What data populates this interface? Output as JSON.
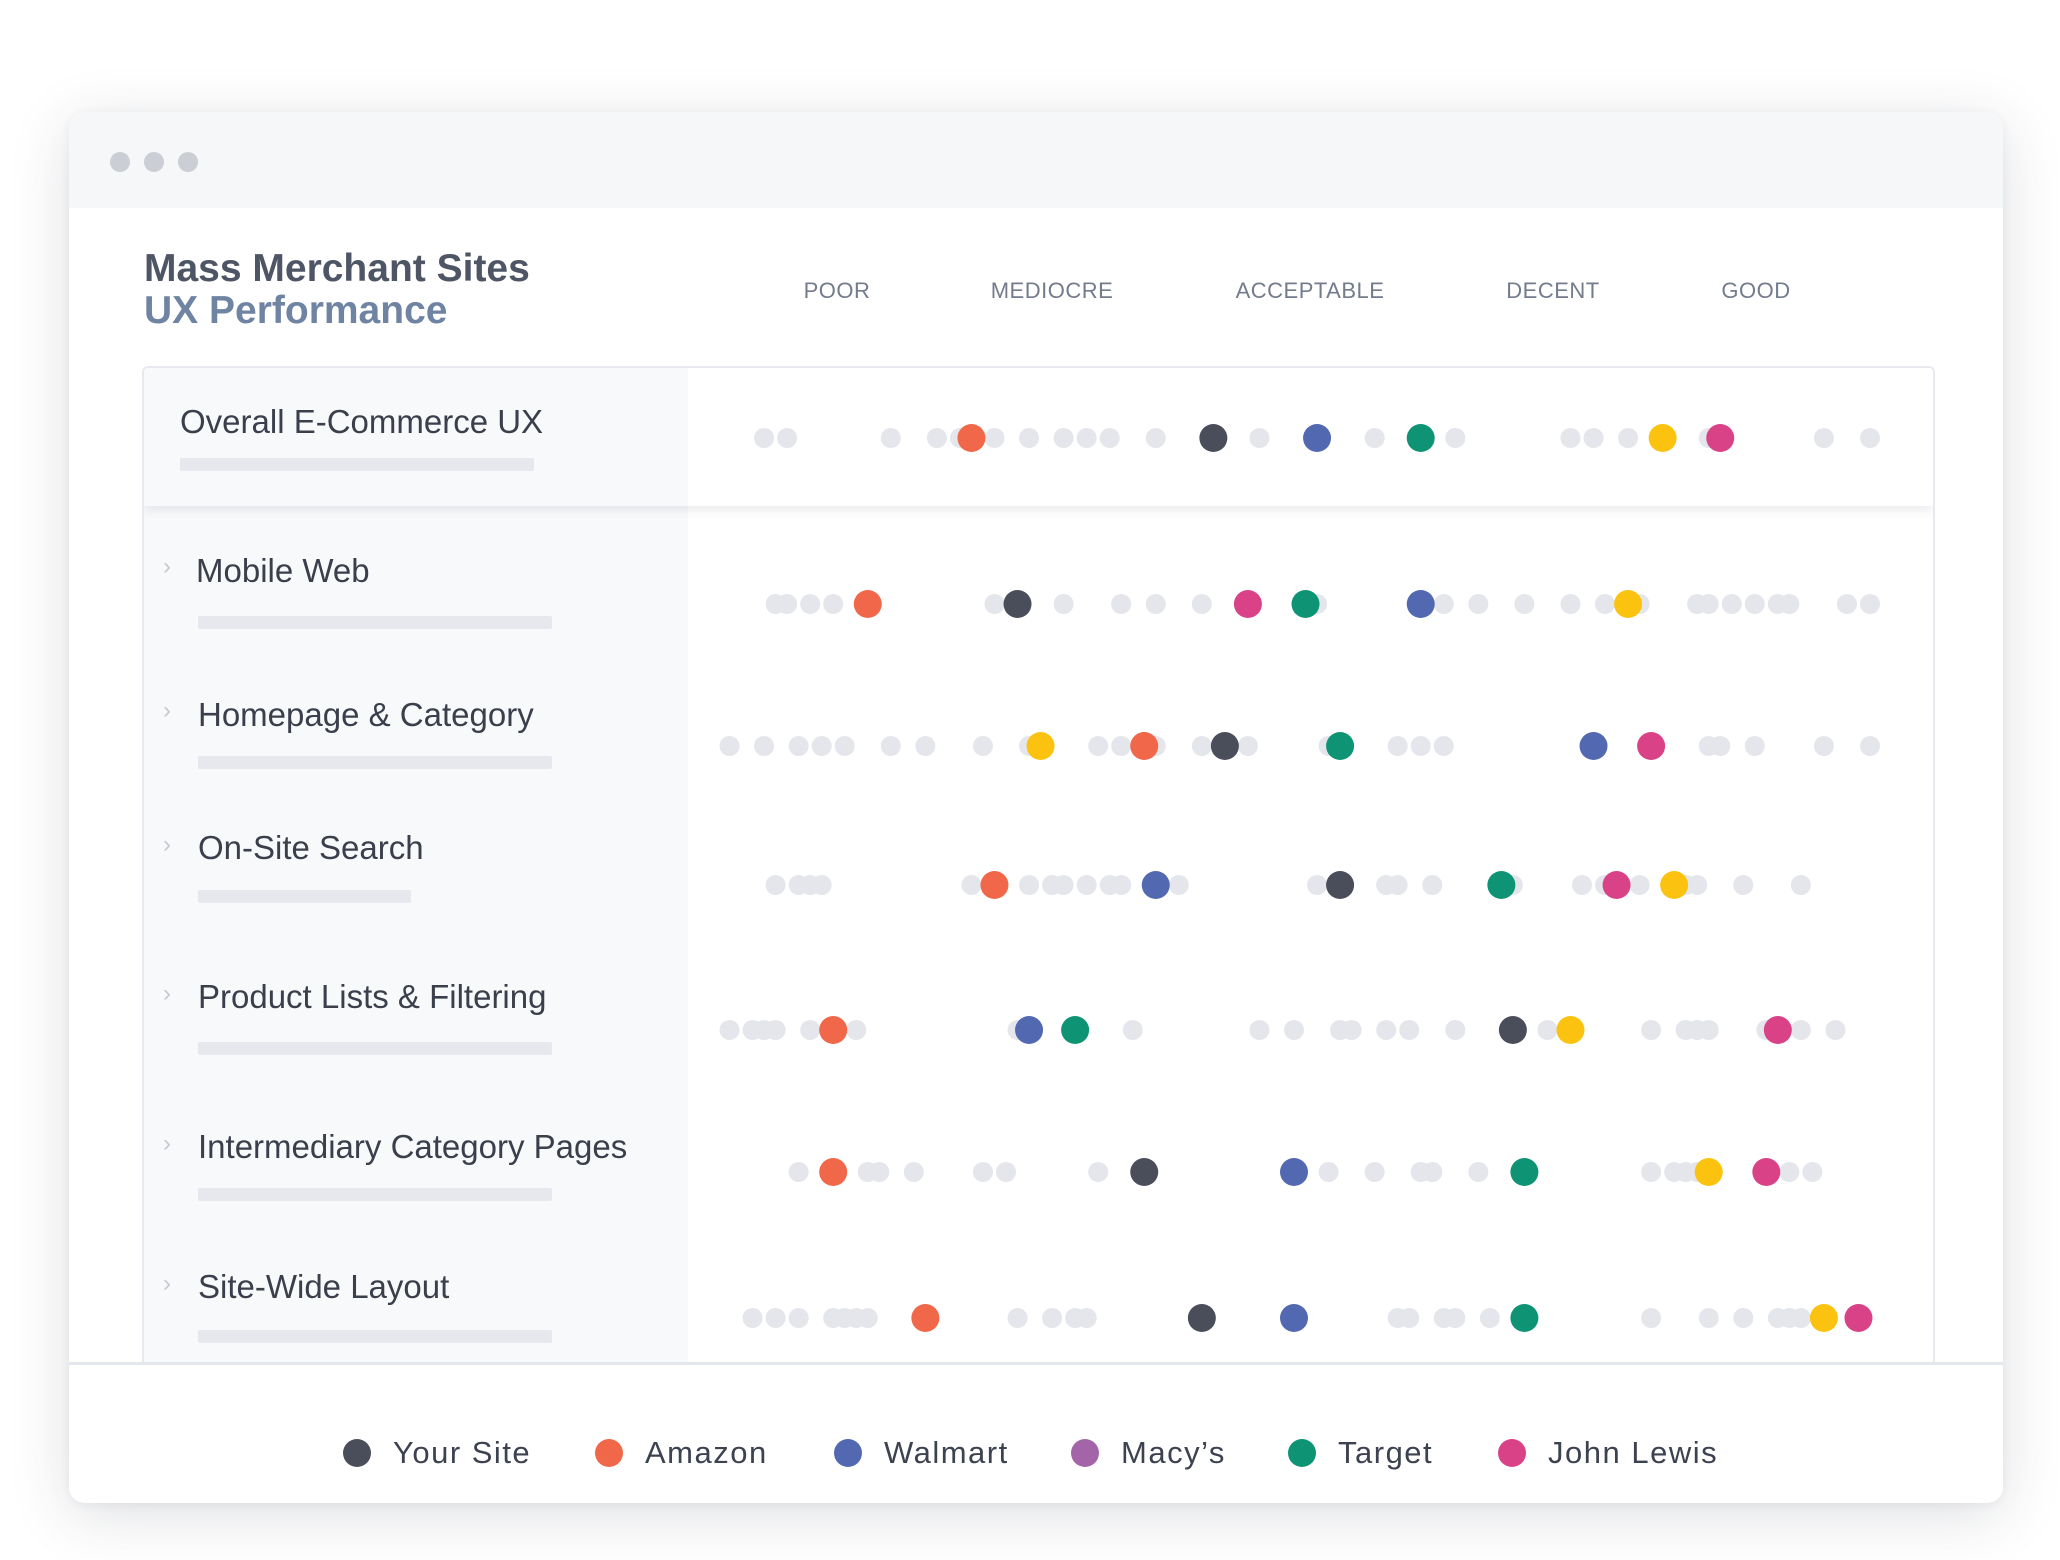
{
  "chart_data": {
    "type": "scatter",
    "title": "Mass Merchant Sites",
    "subtitle": "UX Performance",
    "scale_categories": [
      "POOR",
      "MEDIOCRE",
      "ACCEPTABLE",
      "DECENT",
      "GOOD"
    ],
    "rows": [
      {
        "label": "Overall E-Commerce UX",
        "values": {
          "Your Site": 0.43,
          "Amazon": 0.22,
          "Walmart": 0.52,
          "Target": 0.61,
          "John Lewis": 0.87,
          "Yellow": 0.82
        }
      },
      {
        "label": "Mobile Web",
        "values": {
          "Your Site": 0.26,
          "Amazon": 0.13,
          "Walmart": 0.61,
          "Target": 0.51,
          "John Lewis": 0.46,
          "Yellow": 0.79
        }
      },
      {
        "label": "Homepage & Category",
        "values": {
          "Your Site": 0.44,
          "Amazon": 0.37,
          "Walmart": 0.76,
          "Target": 0.54,
          "John Lewis": 0.81,
          "Yellow": 0.28
        }
      },
      {
        "label": "On-Site Search",
        "values": {
          "Your Site": 0.54,
          "Amazon": 0.24,
          "Walmart": 0.38,
          "Target": 0.68,
          "John Lewis": 0.78,
          "Yellow": 0.83
        }
      },
      {
        "label": "Product Lists & Filtering",
        "values": {
          "Your Site": 0.69,
          "Amazon": 0.1,
          "Walmart": 0.27,
          "Target": 0.31,
          "John Lewis": 0.92,
          "Yellow": 0.74
        }
      },
      {
        "label": "Intermediary Category Pages",
        "values": {
          "Your Site": 0.37,
          "Amazon": 0.1,
          "Walmart": 0.5,
          "Target": 0.7,
          "John Lewis": 0.91,
          "Yellow": 0.86
        }
      },
      {
        "label": "Site-Wide Layout",
        "values": {
          "Your Site": 0.42,
          "Amazon": 0.18,
          "Walmart": 0.5,
          "Target": 0.7,
          "John Lewis": 0.99,
          "Yellow": 0.96
        }
      }
    ],
    "background_points": [
      [
        0.04,
        0.06,
        0.15,
        0.19,
        0.21,
        0.24,
        0.27,
        0.3,
        0.32,
        0.34,
        0.38,
        0.47,
        0.57,
        0.64,
        0.74,
        0.76,
        0.79,
        0.86,
        0.96,
        1.0
      ],
      [
        0.05,
        0.06,
        0.08,
        0.1,
        0.24,
        0.3,
        0.35,
        0.38,
        0.42,
        0.52,
        0.63,
        0.66,
        0.7,
        0.74,
        0.77,
        0.8,
        0.85,
        0.86,
        0.88,
        0.9,
        0.92,
        0.93,
        0.98,
        1.0
      ],
      [
        0.01,
        0.04,
        0.07,
        0.09,
        0.11,
        0.15,
        0.18,
        0.23,
        0.27,
        0.33,
        0.35,
        0.37,
        0.38,
        0.42,
        0.46,
        0.53,
        0.59,
        0.61,
        0.63,
        0.86,
        0.87,
        0.9,
        0.96,
        1.0
      ],
      [
        0.05,
        0.07,
        0.08,
        0.09,
        0.22,
        0.27,
        0.29,
        0.3,
        0.32,
        0.34,
        0.35,
        0.4,
        0.52,
        0.58,
        0.59,
        0.62,
        0.69,
        0.75,
        0.77,
        0.8,
        0.84,
        0.85,
        0.89,
        0.94
      ],
      [
        0.01,
        0.03,
        0.04,
        0.05,
        0.08,
        0.12,
        0.26,
        0.36,
        0.47,
        0.5,
        0.54,
        0.55,
        0.58,
        0.6,
        0.64,
        0.72,
        0.81,
        0.84,
        0.85,
        0.86,
        0.91,
        0.94,
        0.97
      ],
      [
        0.07,
        0.13,
        0.14,
        0.17,
        0.23,
        0.25,
        0.33,
        0.53,
        0.57,
        0.61,
        0.62,
        0.66,
        0.81,
        0.83,
        0.84,
        0.85,
        0.93,
        0.95
      ],
      [
        0.03,
        0.05,
        0.07,
        0.1,
        0.11,
        0.12,
        0.13,
        0.26,
        0.29,
        0.31,
        0.32,
        0.59,
        0.6,
        0.63,
        0.64,
        0.67,
        0.81,
        0.86,
        0.89,
        0.92,
        0.93,
        0.94
      ]
    ],
    "series": [
      {
        "name": "Your Site",
        "color": "#4a4e5a"
      },
      {
        "name": "Amazon",
        "color": "#f0674a"
      },
      {
        "name": "Walmart",
        "color": "#5268b0"
      },
      {
        "name": "Macy’s",
        "color": "#a365a8"
      },
      {
        "name": "Target",
        "color": "#0e9474"
      },
      {
        "name": "John Lewis",
        "color": "#d94287"
      },
      {
        "name": "Yellow",
        "color": "#fbc20f"
      }
    ],
    "background_point_color": "#e4e6ec"
  },
  "legend": [
    "Your Site",
    "Amazon",
    "Walmart",
    "Macy’s",
    "Target",
    "John Lewis"
  ]
}
